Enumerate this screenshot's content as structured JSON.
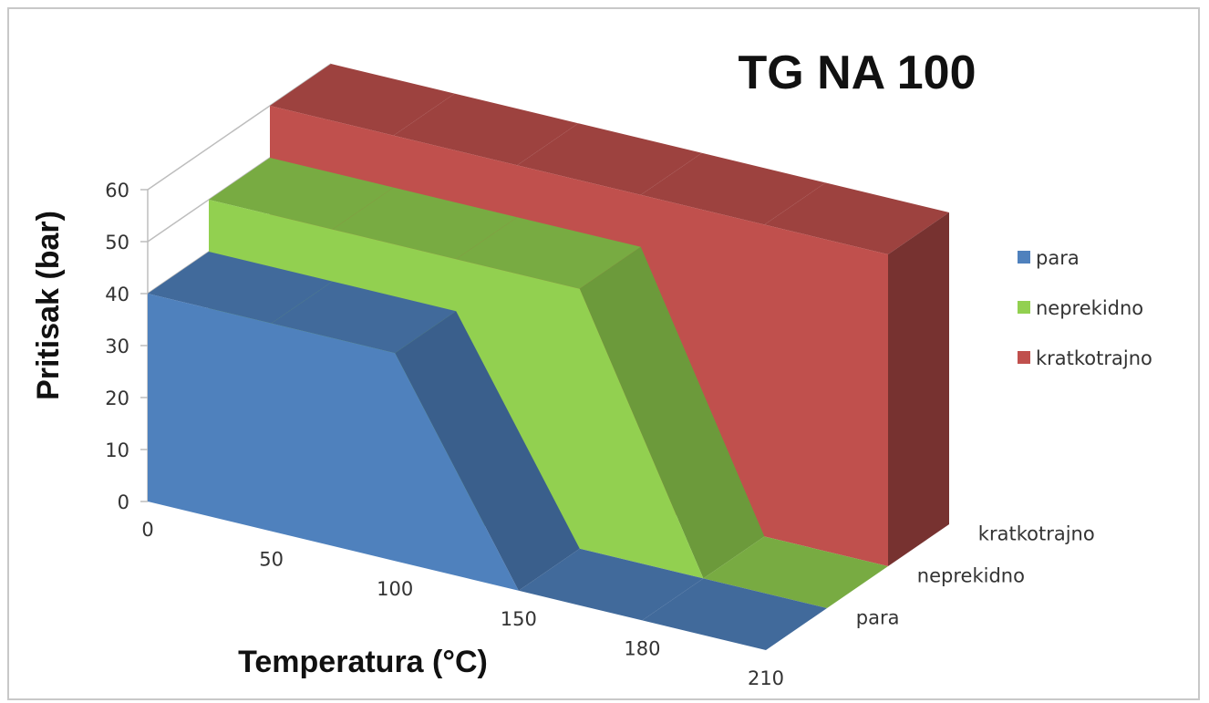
{
  "chart_data": {
    "type": "area",
    "subtype": "3d-area",
    "title": "TG NA 100",
    "xlabel": "Temperatura (°C)",
    "ylabel": "Pritisak  (bar)",
    "categories": [
      "0",
      "50",
      "100",
      "150",
      "180",
      "210"
    ],
    "y_ticks": [
      "0",
      "10",
      "20",
      "30",
      "40",
      "50",
      "60"
    ],
    "ylim": [
      0,
      60
    ],
    "depth_labels": [
      "para",
      "neprekidno",
      "kratkotrajno"
    ],
    "series": [
      {
        "name": "para",
        "values": [
          40,
          40,
          40,
          0,
          0,
          0
        ],
        "color": "#4f81bd"
      },
      {
        "name": "neprekidno",
        "values": [
          50,
          50,
          50,
          50,
          0,
          0
        ],
        "color": "#92d050"
      },
      {
        "name": "kratkotrajno",
        "values": [
          60,
          60,
          60,
          60,
          60,
          60
        ],
        "color": "#c0504d"
      }
    ],
    "legend": {
      "position": "right"
    },
    "grid": true
  }
}
